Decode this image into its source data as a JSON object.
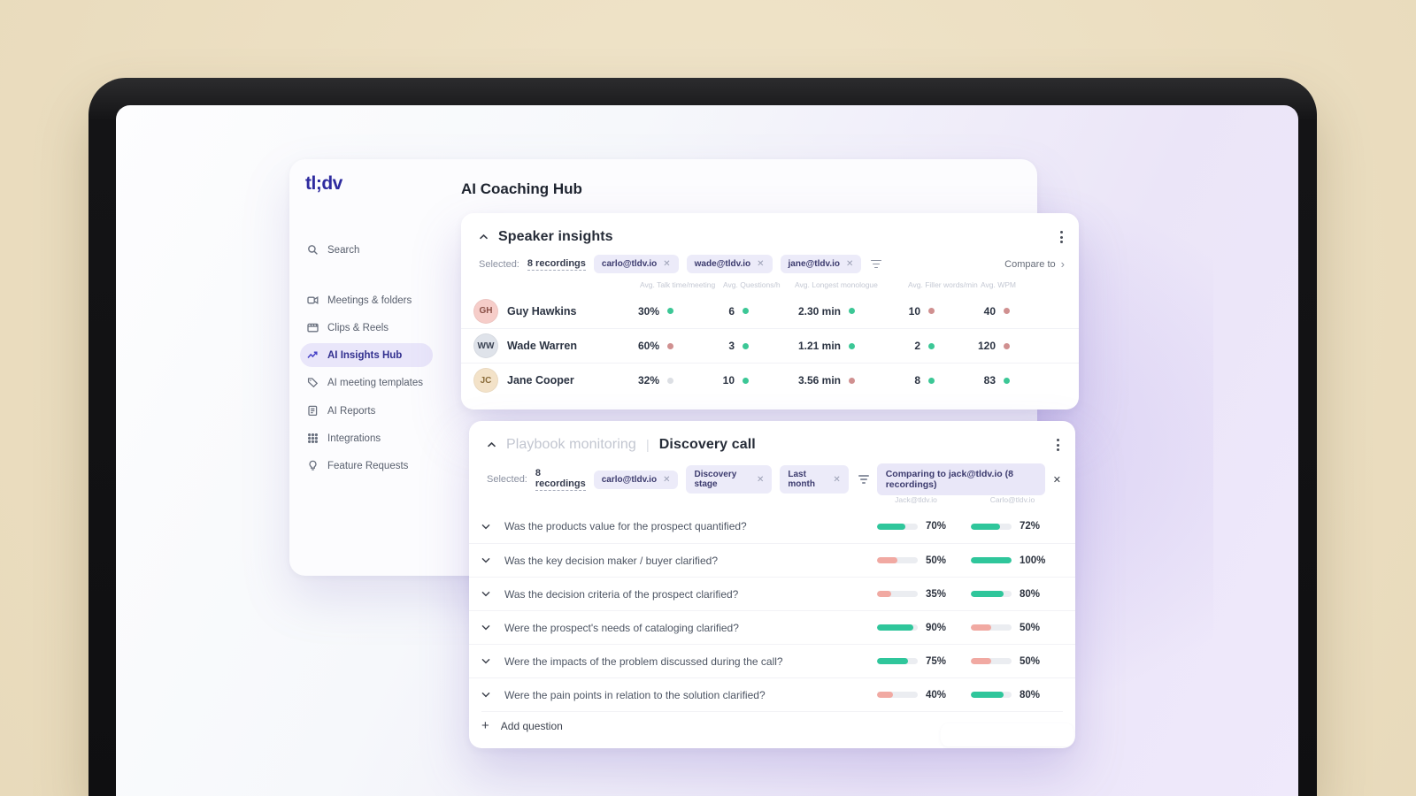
{
  "window": {
    "title": "AI Coaching Hub"
  },
  "sidebar": {
    "logo": "tl;dv",
    "search_label": "Search",
    "items": [
      {
        "label": "Meetings & folders",
        "icon": "video-camera-icon",
        "active": false
      },
      {
        "label": "Clips & Reels",
        "icon": "clapperboard-icon",
        "active": false
      },
      {
        "label": "AI Insights Hub",
        "icon": "trend-chart-icon",
        "active": true
      },
      {
        "label": "AI meeting templates",
        "icon": "tag-icon",
        "active": false
      },
      {
        "label": "AI Reports",
        "icon": "report-icon",
        "active": false
      },
      {
        "label": "Integrations",
        "icon": "grid-dots-icon",
        "active": false
      },
      {
        "label": "Feature Requests",
        "icon": "lightbulb-icon",
        "active": false
      }
    ]
  },
  "speaker_insights": {
    "title": "Speaker insights",
    "selected_label": "Selected:",
    "selected_count": "8 recordings",
    "chips": [
      "carlo@tldv.io",
      "wade@tldv.io",
      "jane@tldv.io"
    ],
    "compare_label": "Compare to",
    "compare_arrow": "›",
    "columns": [
      "Avg. Talk time/meeting",
      "Avg. Questions/h",
      "Avg. Longest monologue",
      "Avg. Filler words/min",
      "Avg. WPM"
    ],
    "rows": [
      {
        "name": "Guy Hawkins",
        "avatar": {
          "initials": "GH",
          "bg": "#f6cdc9",
          "fg": "#8a4f46"
        },
        "stats": [
          {
            "value": "30%",
            "status": "good"
          },
          {
            "value": "6",
            "status": "good"
          },
          {
            "value": "2.30 min",
            "status": "good"
          },
          {
            "value": "10",
            "status": "bad"
          },
          {
            "value": "40",
            "status": "bad"
          }
        ]
      },
      {
        "name": "Wade Warren",
        "avatar": {
          "initials": "WW",
          "bg": "#dfe3ea",
          "fg": "#3c4454"
        },
        "stats": [
          {
            "value": "60%",
            "status": "bad"
          },
          {
            "value": "3",
            "status": "good"
          },
          {
            "value": "1.21 min",
            "status": "good"
          },
          {
            "value": "2",
            "status": "good"
          },
          {
            "value": "120",
            "status": "bad"
          }
        ]
      },
      {
        "name": "Jane Cooper",
        "avatar": {
          "initials": "JC",
          "bg": "#f3e2c8",
          "fg": "#8a6c3a"
        },
        "stats": [
          {
            "value": "32%",
            "status": "neutral"
          },
          {
            "value": "10",
            "status": "good"
          },
          {
            "value": "3.56 min",
            "status": "bad"
          },
          {
            "value": "8",
            "status": "good"
          },
          {
            "value": "83",
            "status": "good"
          }
        ]
      }
    ]
  },
  "playbook": {
    "title_muted": "Playbook monitoring",
    "title_sep": "|",
    "title": "Discovery call",
    "selected_label": "Selected:",
    "selected_count": "8 recordings",
    "chips": [
      "carlo@tldv.io",
      "Discovery stage",
      "Last month"
    ],
    "comparing_chip": "Comparing to jack@tldv.io (8 recordings)",
    "col_left": "Jack@tldv.io",
    "col_right": "Carlo@tldv.io",
    "questions": [
      {
        "text": "Was the products value for the prospect quantified?",
        "left": {
          "pct": 70,
          "label": "70%",
          "color": "green"
        },
        "right": {
          "pct": 72,
          "label": "72%",
          "color": "green"
        }
      },
      {
        "text": "Was the key decision maker / buyer clarified?",
        "left": {
          "pct": 50,
          "label": "50%",
          "color": "pink"
        },
        "right": {
          "pct": 100,
          "label": "100%",
          "color": "green"
        }
      },
      {
        "text": "Was the decision criteria of the prospect clarified?",
        "left": {
          "pct": 35,
          "label": "35%",
          "color": "pink"
        },
        "right": {
          "pct": 80,
          "label": "80%",
          "color": "green"
        }
      },
      {
        "text": "Were the prospect's needs of cataloging clarified?",
        "left": {
          "pct": 90,
          "label": "90%",
          "color": "green"
        },
        "right": {
          "pct": 50,
          "label": "50%",
          "color": "pink"
        }
      },
      {
        "text": "Were the impacts of the problem discussed during the call?",
        "left": {
          "pct": 75,
          "label": "75%",
          "color": "green"
        },
        "right": {
          "pct": 50,
          "label": "50%",
          "color": "pink"
        }
      },
      {
        "text": "Were the pain points in relation to the solution clarified?",
        "left": {
          "pct": 40,
          "label": "40%",
          "color": "pink"
        },
        "right": {
          "pct": 80,
          "label": "80%",
          "color": "green"
        }
      }
    ],
    "add_question_label": "Add question",
    "add_question_plus": "+"
  },
  "colors": {
    "green": "#2fc69b",
    "pink": "#f1a9a2",
    "dot_good": "#3cc796",
    "dot_bad": "#d09090",
    "dot_neutral": "#dcdfe4"
  }
}
